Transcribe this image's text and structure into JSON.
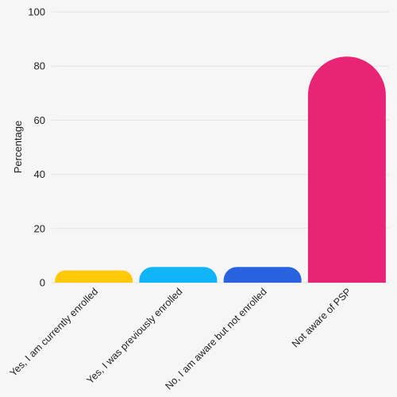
{
  "chart_data": {
    "type": "bar",
    "title": "",
    "xlabel": "",
    "ylabel": "Percentage",
    "ylim": [
      0,
      100
    ],
    "yticks": [
      0,
      20,
      40,
      60,
      80,
      100
    ],
    "grid": true,
    "categories": [
      "Yes, I am currently enrolled",
      "Yes, I was previously enrolled",
      "No, I am aware but not enrolled",
      "Not aware of PSP"
    ],
    "values": [
      4.5,
      5.8,
      5.8,
      83.5
    ],
    "colors": [
      "#ffc90a",
      "#12b4f8",
      "#2962de",
      "#e82475"
    ]
  }
}
